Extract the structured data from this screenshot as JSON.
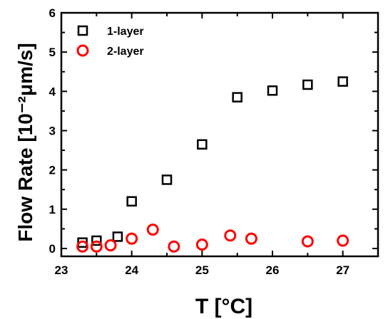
{
  "chart_data": {
    "type": "scatter",
    "xlabel": "T [°C]",
    "ylabel": "Flow Rate [10⁻²μm/s]",
    "xlim": [
      23,
      27.5
    ],
    "ylim": [
      -0.2,
      6
    ],
    "xticks": [
      23,
      24,
      25,
      26,
      27
    ],
    "yticks": [
      0,
      1,
      2,
      3,
      4,
      5,
      6
    ],
    "grid": false,
    "legend_position": "top-left",
    "series": [
      {
        "name": "1-layer",
        "marker": "square",
        "color": "#000000",
        "points": [
          {
            "x": 23.3,
            "y": 0.15
          },
          {
            "x": 23.5,
            "y": 0.2
          },
          {
            "x": 23.8,
            "y": 0.3
          },
          {
            "x": 24.0,
            "y": 1.2
          },
          {
            "x": 24.5,
            "y": 1.75
          },
          {
            "x": 25.0,
            "y": 2.65
          },
          {
            "x": 25.5,
            "y": 3.85
          },
          {
            "x": 26.0,
            "y": 4.02
          },
          {
            "x": 26.5,
            "y": 4.17
          },
          {
            "x": 27.0,
            "y": 4.25
          }
        ]
      },
      {
        "name": "2-layer",
        "marker": "circle",
        "color": "#ff0000",
        "points": [
          {
            "x": 23.3,
            "y": 0.05
          },
          {
            "x": 23.5,
            "y": 0.05
          },
          {
            "x": 23.7,
            "y": 0.08
          },
          {
            "x": 24.0,
            "y": 0.25
          },
          {
            "x": 24.3,
            "y": 0.48
          },
          {
            "x": 24.6,
            "y": 0.05
          },
          {
            "x": 25.0,
            "y": 0.1
          },
          {
            "x": 25.4,
            "y": 0.33
          },
          {
            "x": 25.7,
            "y": 0.25
          },
          {
            "x": 26.5,
            "y": 0.18
          },
          {
            "x": 27.0,
            "y": 0.2
          }
        ]
      }
    ]
  }
}
